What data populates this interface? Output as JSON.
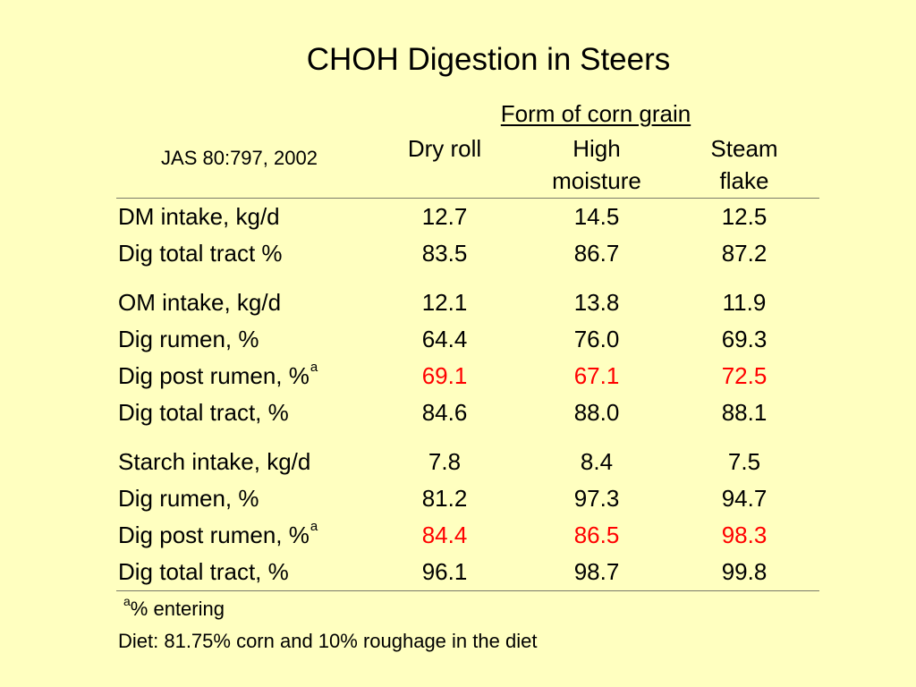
{
  "title": "CHOH Digestion in Steers",
  "group_header": "Form of corn grain",
  "citation": "JAS 80:797, 2002",
  "columns": [
    {
      "label": "Dry roll"
    },
    {
      "label": "High\nmoisture"
    },
    {
      "label": "Steam\nflake"
    }
  ],
  "highlight_color": "#ff0000",
  "rows": [
    {
      "label": "DM intake, kg/d",
      "sup": "",
      "values": [
        "12.7",
        "14.5",
        "12.5"
      ],
      "highlight": false
    },
    {
      "label": "Dig total tract %",
      "sup": "",
      "values": [
        "83.5",
        "86.7",
        "87.2"
      ],
      "highlight": false
    },
    {
      "label": "OM intake, kg/d",
      "sup": "",
      "values": [
        "12.1",
        "13.8",
        "11.9"
      ],
      "highlight": false
    },
    {
      "label": "Dig rumen, %",
      "sup": "",
      "values": [
        "64.4",
        "76.0",
        "69.3"
      ],
      "highlight": false
    },
    {
      "label": "Dig post rumen, %",
      "sup": "a",
      "values": [
        "69.1",
        "67.1",
        "72.5"
      ],
      "highlight": true
    },
    {
      "label": "Dig total tract, %",
      "sup": "",
      "values": [
        "84.6",
        "88.0",
        "88.1"
      ],
      "highlight": false
    },
    {
      "label": "Starch intake, kg/d",
      "sup": "",
      "values": [
        "7.8",
        "8.4",
        "7.5"
      ],
      "highlight": false
    },
    {
      "label": "Dig rumen, %",
      "sup": "",
      "values": [
        "81.2",
        "97.3",
        "94.7"
      ],
      "highlight": false
    },
    {
      "label": "Dig post rumen, %",
      "sup": "a",
      "values": [
        "84.4",
        "86.5",
        "98.3"
      ],
      "highlight": true
    },
    {
      "label": "Dig total tract, %",
      "sup": "",
      "values": [
        "96.1",
        "98.7",
        "99.8"
      ],
      "highlight": false
    }
  ],
  "footnote": {
    "marker": "a",
    "text": "% entering"
  },
  "diet_note": "Diet: 81.75% corn and 10% roughage in the diet"
}
